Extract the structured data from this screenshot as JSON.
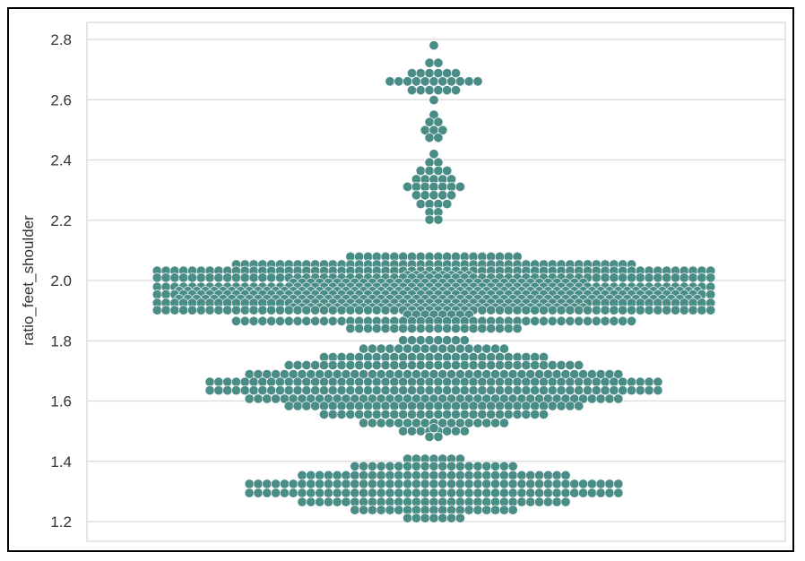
{
  "chart_data": {
    "type": "scatter",
    "subtype": "swarm",
    "title": "",
    "xlabel": "",
    "ylabel": "ratio_feet_shoulder",
    "ylim": [
      1.18,
      2.83
    ],
    "yticks": [
      1.2,
      1.4,
      1.6,
      1.8,
      2.0,
      2.2,
      2.4,
      2.6,
      2.8
    ],
    "ytick_labels": [
      "1.2",
      "1.4",
      "1.6",
      "1.8",
      "2.0",
      "2.2",
      "2.4",
      "2.6",
      "2.8"
    ],
    "grid": "horizontal",
    "marker_color": "#4a8c86",
    "series": [
      {
        "clusters": [
          {
            "y_center": 2.78,
            "half_range": 0.0,
            "count": 1
          },
          {
            "y_center": 2.66,
            "half_range": 0.06,
            "count": 26
          },
          {
            "y_center": 2.5,
            "half_range": 0.05,
            "count": 7
          },
          {
            "y_center": 2.31,
            "half_range": 0.11,
            "count": 32
          },
          {
            "y_center": 1.96,
            "half_range": 0.12,
            "count": 720
          },
          {
            "y_center": 1.65,
            "half_range": 0.15,
            "count": 360
          },
          {
            "y_center": 1.48,
            "half_range": 0.03,
            "count": 3
          },
          {
            "y_center": 1.31,
            "half_range": 0.1,
            "count": 200
          }
        ]
      }
    ]
  }
}
